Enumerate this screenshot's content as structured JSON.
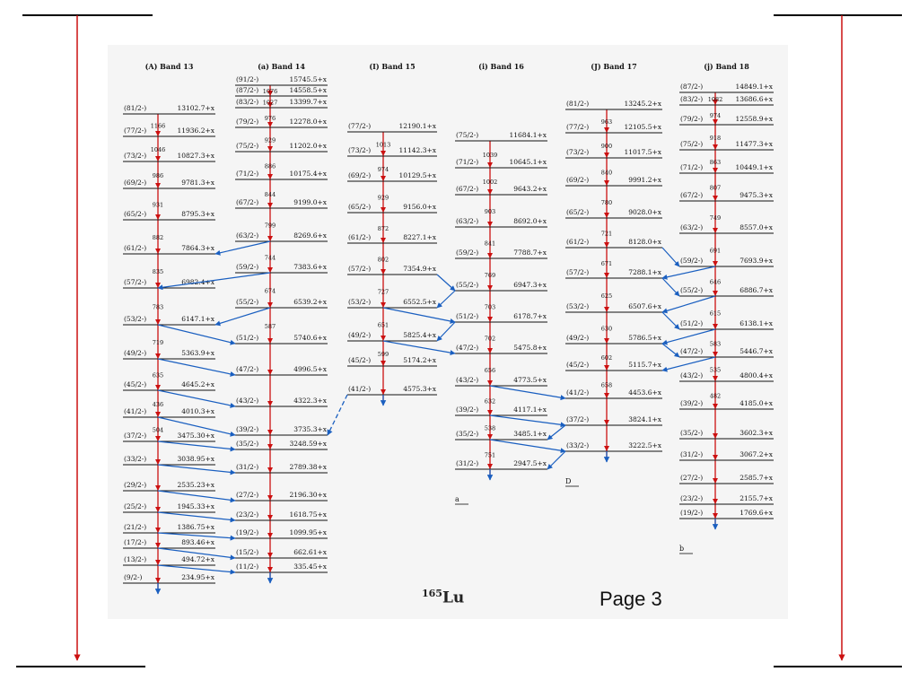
{
  "page_label": "Page 3",
  "nucleus": {
    "mass": "165",
    "symbol": "Lu"
  },
  "colors": {
    "transition_red": "#cc1111",
    "link_blue": "#1a5fc0",
    "level_line": "#111111",
    "panel_bg": "#f5f5f5"
  },
  "bands": [
    {
      "title": "(A) Band 13",
      "footnote": "",
      "levels": [
        {
          "spin": "(81/2-)",
          "energy": "13102.7+x"
        },
        {
          "spin": "(77/2-)",
          "energy": "11936.2+x"
        },
        {
          "spin": "(73/2-)",
          "energy": "10827.3+x"
        },
        {
          "spin": "(69/2-)",
          "energy": "9781.3+x"
        },
        {
          "spin": "(65/2-)",
          "energy": "8795.3+x"
        },
        {
          "spin": "(61/2-)",
          "energy": "7864.3+x"
        },
        {
          "spin": "(57/2-)",
          "energy": "6982.4+x"
        },
        {
          "spin": "(53/2-)",
          "energy": "6147.1+x"
        },
        {
          "spin": "(49/2-)",
          "energy": "5363.9+x"
        },
        {
          "spin": "(45/2-)",
          "energy": "4645.2+x"
        },
        {
          "spin": "(41/2-)",
          "energy": "4010.3+x"
        },
        {
          "spin": "(37/2-)",
          "energy": "3475.30+x"
        },
        {
          "spin": "(33/2-)",
          "energy": "3038.95+x"
        },
        {
          "spin": "(29/2-)",
          "energy": "2535.23+x"
        },
        {
          "spin": "(25/2-)",
          "energy": "1945.33+x"
        },
        {
          "spin": "(21/2-)",
          "energy": "1386.75+x"
        },
        {
          "spin": "(17/2-)",
          "energy": "893.46+x"
        },
        {
          "spin": "(13/2-)",
          "energy": "494.72+x"
        },
        {
          "spin": "(9/2-)",
          "energy": "234.95+x"
        }
      ],
      "gammas": [
        "1166",
        "1046",
        "986",
        "931",
        "882",
        "835",
        "783",
        "719",
        "635",
        "436",
        "504"
      ]
    },
    {
      "title": "(a) Band 14",
      "footnote": "",
      "levels": [
        {
          "spin": "(91/2-)",
          "energy": "15745.5+x"
        },
        {
          "spin": "(87/2-)",
          "energy": "14558.5+x"
        },
        {
          "spin": "(83/2-)",
          "energy": "13399.7+x"
        },
        {
          "spin": "(79/2-)",
          "energy": "12278.0+x"
        },
        {
          "spin": "(75/2-)",
          "energy": "11202.0+x"
        },
        {
          "spin": "(71/2-)",
          "energy": "10175.4+x"
        },
        {
          "spin": "(67/2-)",
          "energy": "9199.0+x"
        },
        {
          "spin": "(63/2-)",
          "energy": "8269.6+x"
        },
        {
          "spin": "(59/2-)",
          "energy": "7383.6+x"
        },
        {
          "spin": "(55/2-)",
          "energy": "6539.2+x"
        },
        {
          "spin": "(51/2-)",
          "energy": "5740.6+x"
        },
        {
          "spin": "(47/2-)",
          "energy": "4996.5+x"
        },
        {
          "spin": "(43/2-)",
          "energy": "4322.3+x"
        },
        {
          "spin": "(39/2-)",
          "energy": "3735.3+x"
        },
        {
          "spin": "(35/2-)",
          "energy": "3248.59+x"
        },
        {
          "spin": "(31/2-)",
          "energy": "2789.38+x"
        },
        {
          "spin": "(27/2-)",
          "energy": "2196.30+x"
        },
        {
          "spin": "(23/2-)",
          "energy": "1618.75+x"
        },
        {
          "spin": "(19/2-)",
          "energy": "1099.95+x"
        },
        {
          "spin": "(15/2-)",
          "energy": "662.61+x"
        },
        {
          "spin": "(11/2-)",
          "energy": "335.45+x"
        }
      ],
      "gammas": [
        "1076",
        "1027",
        "976",
        "929",
        "886",
        "844",
        "799",
        "744",
        "674",
        "587"
      ]
    },
    {
      "title": "(I) Band 15",
      "footnote": "",
      "levels": [
        {
          "spin": "(77/2-)",
          "energy": "12190.1+x"
        },
        {
          "spin": "(73/2-)",
          "energy": "11142.3+x"
        },
        {
          "spin": "(69/2-)",
          "energy": "10129.5+x"
        },
        {
          "spin": "(65/2-)",
          "energy": "9156.0+x"
        },
        {
          "spin": "(61/2-)",
          "energy": "8227.1+x"
        },
        {
          "spin": "(57/2-)",
          "energy": "7354.9+x"
        },
        {
          "spin": "(53/2-)",
          "energy": "6552.5+x"
        },
        {
          "spin": "(49/2-)",
          "energy": "5825.4+x"
        },
        {
          "spin": "(45/2-)",
          "energy": "5174.2+x"
        },
        {
          "spin": "(41/2-)",
          "energy": "4575.3+x"
        }
      ],
      "gammas": [
        "1013",
        "974",
        "929",
        "872",
        "802",
        "727",
        "651",
        "599"
      ]
    },
    {
      "title": "(i) Band 16",
      "footnote": "a",
      "levels": [
        {
          "spin": "(75/2-)",
          "energy": "11684.1+x"
        },
        {
          "spin": "(71/2-)",
          "energy": "10645.1+x"
        },
        {
          "spin": "(67/2-)",
          "energy": "9643.2+x"
        },
        {
          "spin": "(63/2-)",
          "energy": "8692.0+x"
        },
        {
          "spin": "(59/2-)",
          "energy": "7788.7+x"
        },
        {
          "spin": "(55/2-)",
          "energy": "6947.3+x"
        },
        {
          "spin": "(51/2-)",
          "energy": "6178.7+x"
        },
        {
          "spin": "(47/2-)",
          "energy": "5475.8+x"
        },
        {
          "spin": "(43/2-)",
          "energy": "4773.5+x"
        },
        {
          "spin": "(39/2-)",
          "energy": "4117.1+x"
        },
        {
          "spin": "(35/2-)",
          "energy": "3485.1+x"
        },
        {
          "spin": "(31/2-)",
          "energy": "2947.5+x"
        }
      ],
      "gammas": [
        "1039",
        "1002",
        "903",
        "841",
        "769",
        "703",
        "702",
        "656",
        "632",
        "538",
        "751"
      ]
    },
    {
      "title": "(J) Band 17",
      "footnote": "D",
      "levels": [
        {
          "spin": "(81/2-)",
          "energy": "13245.2+x"
        },
        {
          "spin": "(77/2-)",
          "energy": "12105.5+x"
        },
        {
          "spin": "(73/2-)",
          "energy": "11017.5+x"
        },
        {
          "spin": "(69/2-)",
          "energy": "9991.2+x"
        },
        {
          "spin": "(65/2-)",
          "energy": "9028.0+x"
        },
        {
          "spin": "(61/2-)",
          "energy": "8128.0+x"
        },
        {
          "spin": "(57/2-)",
          "energy": "7288.1+x"
        },
        {
          "spin": "(53/2-)",
          "energy": "6507.6+x"
        },
        {
          "spin": "(49/2-)",
          "energy": "5786.5+x"
        },
        {
          "spin": "(45/2-)",
          "energy": "5115.7+x"
        },
        {
          "spin": "(41/2-)",
          "energy": "4453.6+x"
        },
        {
          "spin": "(37/2-)",
          "energy": "3824.1+x"
        },
        {
          "spin": "(33/2-)",
          "energy": "3222.5+x"
        }
      ],
      "gammas": [
        "963",
        "900",
        "840",
        "780",
        "721",
        "671",
        "625",
        "630",
        "602",
        "658"
      ]
    },
    {
      "title": "(j) Band 18",
      "footnote": "b",
      "levels": [
        {
          "spin": "(87/2-)",
          "energy": "14849.1+x"
        },
        {
          "spin": "(83/2-)",
          "energy": "13686.6+x"
        },
        {
          "spin": "(79/2-)",
          "energy": "12558.9+x"
        },
        {
          "spin": "(75/2-)",
          "energy": "11477.3+x"
        },
        {
          "spin": "(71/2-)",
          "energy": "10449.1+x"
        },
        {
          "spin": "(67/2-)",
          "energy": "9475.3+x"
        },
        {
          "spin": "(63/2-)",
          "energy": "8557.0+x"
        },
        {
          "spin": "(59/2-)",
          "energy": "7693.9+x"
        },
        {
          "spin": "(55/2-)",
          "energy": "6886.7+x"
        },
        {
          "spin": "(51/2-)",
          "energy": "6138.1+x"
        },
        {
          "spin": "(47/2-)",
          "energy": "5446.7+x"
        },
        {
          "spin": "(43/2-)",
          "energy": "4800.4+x"
        },
        {
          "spin": "(39/2-)",
          "energy": "4185.0+x"
        },
        {
          "spin": "(35/2-)",
          "energy": "3602.3+x"
        },
        {
          "spin": "(31/2-)",
          "energy": "3067.2+x"
        },
        {
          "spin": "(27/2-)",
          "energy": "2585.7+x"
        },
        {
          "spin": "(23/2-)",
          "energy": "2155.7+x"
        },
        {
          "spin": "(19/2-)",
          "energy": "1769.6+x"
        }
      ],
      "gammas": [
        "1082",
        "974",
        "918",
        "863",
        "807",
        "749",
        "691",
        "646",
        "615",
        "583",
        "535",
        "482"
      ]
    }
  ]
}
